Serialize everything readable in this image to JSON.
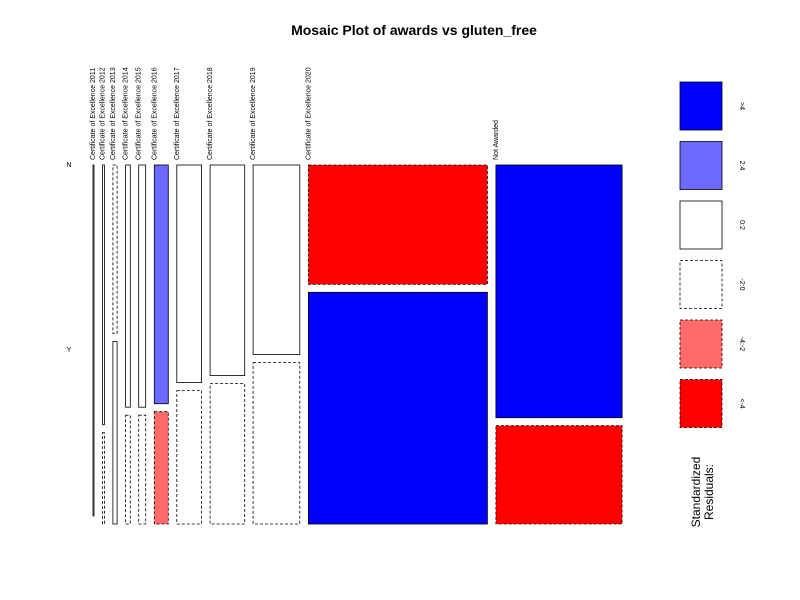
{
  "chart_data": {
    "type": "mosaic",
    "title": "Mosaic Plot of awards vs gluten_free",
    "x_variable_levels": [
      "Certificate of Excellence 2011",
      "Certificate of Excellence 2012",
      "Certificate of Excellence 2013",
      "Certificate of Excellence 2014",
      "Certificate of Excellence 2015",
      "Certificate of Excellence 2016",
      "Certificate of Excellence 2017",
      "Certificate of Excellence 2018",
      "Certificate of Excellence 2019",
      "Certificate of Excellence 2020",
      "Not Awarded"
    ],
    "y_variable_levels": [
      "N",
      "Y"
    ],
    "column_proportions": [
      0.002,
      0.004,
      0.009,
      0.01,
      0.015,
      0.03,
      0.053,
      0.074,
      0.1,
      0.383,
      0.27
    ],
    "cells": [
      {
        "awards": "Certificate of Excellence 2011",
        "gluten_free": "N",
        "proportion_within_column": 1.0,
        "residual_class": "0:2"
      },
      {
        "awards": "Certificate of Excellence 2011",
        "gluten_free": "Y",
        "proportion_within_column": 0.0,
        "residual_class": "-2:0"
      },
      {
        "awards": "Certificate of Excellence 2012",
        "gluten_free": "N",
        "proportion_within_column": 0.74,
        "residual_class": "0:2"
      },
      {
        "awards": "Certificate of Excellence 2012",
        "gluten_free": "Y",
        "proportion_within_column": 0.26,
        "residual_class": "-2:0"
      },
      {
        "awards": "Certificate of Excellence 2013",
        "gluten_free": "N",
        "proportion_within_column": 0.48,
        "residual_class": "-2:0"
      },
      {
        "awards": "Certificate of Excellence 2013",
        "gluten_free": "Y",
        "proportion_within_column": 0.52,
        "residual_class": "0:2"
      },
      {
        "awards": "Certificate of Excellence 2014",
        "gluten_free": "N",
        "proportion_within_column": 0.69,
        "residual_class": "0:2"
      },
      {
        "awards": "Certificate of Excellence 2014",
        "gluten_free": "Y",
        "proportion_within_column": 0.31,
        "residual_class": "-2:0"
      },
      {
        "awards": "Certificate of Excellence 2015",
        "gluten_free": "N",
        "proportion_within_column": 0.69,
        "residual_class": "0:2"
      },
      {
        "awards": "Certificate of Excellence 2015",
        "gluten_free": "Y",
        "proportion_within_column": 0.31,
        "residual_class": "-2:0"
      },
      {
        "awards": "Certificate of Excellence 2016",
        "gluten_free": "N",
        "proportion_within_column": 0.68,
        "residual_class": "2:4"
      },
      {
        "awards": "Certificate of Excellence 2016",
        "gluten_free": "Y",
        "proportion_within_column": 0.32,
        "residual_class": "-4:-2"
      },
      {
        "awards": "Certificate of Excellence 2017",
        "gluten_free": "N",
        "proportion_within_column": 0.62,
        "residual_class": "0:2"
      },
      {
        "awards": "Certificate of Excellence 2017",
        "gluten_free": "Y",
        "proportion_within_column": 0.38,
        "residual_class": "-2:0"
      },
      {
        "awards": "Certificate of Excellence 2018",
        "gluten_free": "N",
        "proportion_within_column": 0.6,
        "residual_class": "0:2"
      },
      {
        "awards": "Certificate of Excellence 2018",
        "gluten_free": "Y",
        "proportion_within_column": 0.4,
        "residual_class": "-2:0"
      },
      {
        "awards": "Certificate of Excellence 2019",
        "gluten_free": "N",
        "proportion_within_column": 0.54,
        "residual_class": "0:2"
      },
      {
        "awards": "Certificate of Excellence 2019",
        "gluten_free": "Y",
        "proportion_within_column": 0.46,
        "residual_class": "-2:0"
      },
      {
        "awards": "Certificate of Excellence 2020",
        "gluten_free": "N",
        "proportion_within_column": 0.34,
        "residual_class": "<-4"
      },
      {
        "awards": "Certificate of Excellence 2020",
        "gluten_free": "Y",
        "proportion_within_column": 0.66,
        "residual_class": ">4"
      },
      {
        "awards": "Not Awarded",
        "gluten_free": "N",
        "proportion_within_column": 0.72,
        "residual_class": ">4"
      },
      {
        "awards": "Not Awarded",
        "gluten_free": "Y",
        "proportion_within_column": 0.28,
        "residual_class": "<-4"
      }
    ],
    "legend": {
      "title_lines": [
        "Standardized",
        "Residuals:"
      ],
      "placement": "right",
      "entries": [
        {
          "label": ">4",
          "fill": "#0000FF",
          "dashed": false
        },
        {
          "label": "2:4",
          "fill": "#6B6BFF",
          "dashed": false
        },
        {
          "label": "0:2",
          "fill": "#FFFFFF",
          "dashed": false
        },
        {
          "label": "-2:0",
          "fill": "#FFFFFF",
          "dashed": true
        },
        {
          "label": "-4:-2",
          "fill": "#FF6B6B",
          "dashed": true
        },
        {
          "label": "<-4",
          "fill": "#FF0000",
          "dashed": true
        }
      ]
    }
  }
}
